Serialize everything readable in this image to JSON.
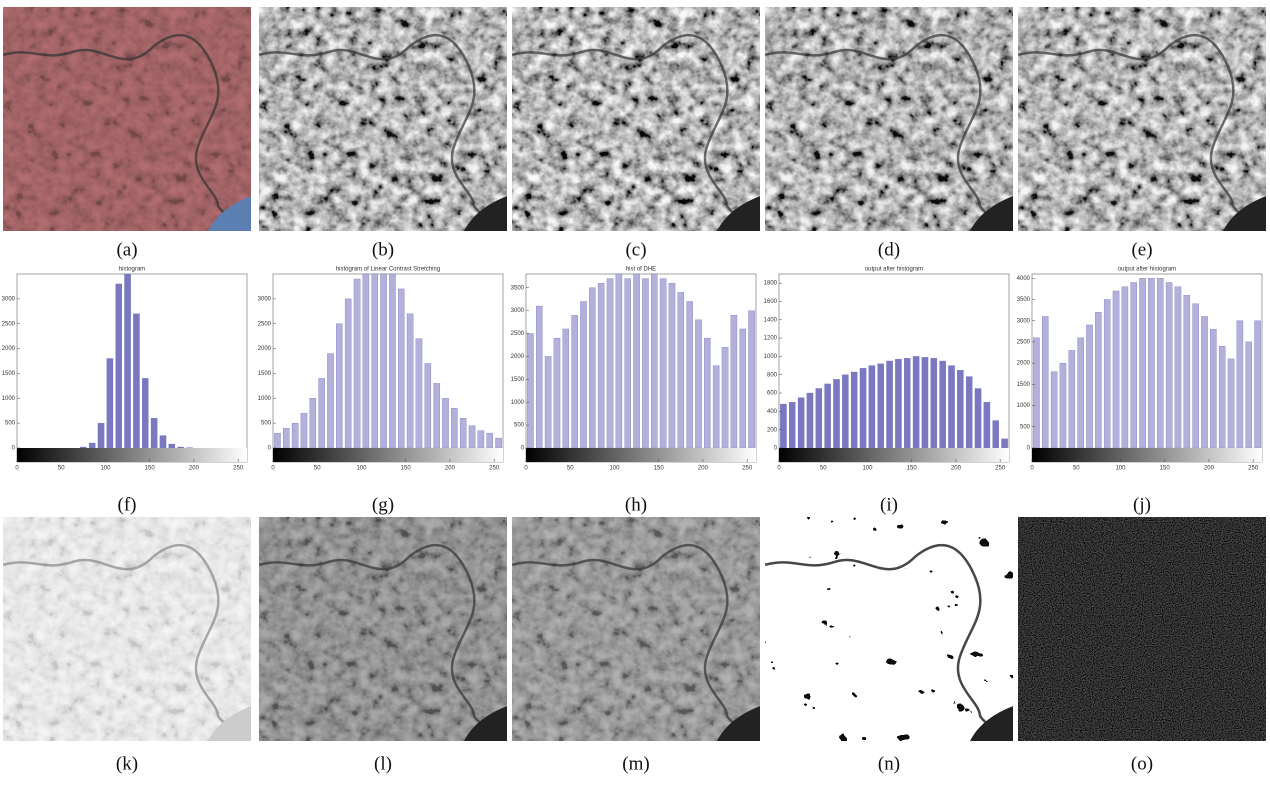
{
  "panels": [
    "(a)",
    "(b)",
    "(c)",
    "(d)",
    "(e)",
    "(f)",
    "(g)",
    "(h)",
    "(i)",
    "(j)",
    "(k)",
    "(l)",
    "(m)",
    "(n)",
    "(o)"
  ],
  "chart_data": [
    {
      "type": "bar",
      "title": "histogram",
      "color": "#7a78c0",
      "x": [
        5,
        15,
        25,
        35,
        45,
        55,
        65,
        75,
        85,
        95,
        105,
        115,
        125,
        135,
        145,
        155,
        165,
        175,
        185,
        195,
        205,
        215,
        225,
        235,
        245,
        255
      ],
      "values": [
        0,
        0,
        0,
        0,
        0,
        0,
        0,
        20,
        100,
        500,
        1800,
        3300,
        3500,
        2700,
        1400,
        600,
        250,
        80,
        20,
        5,
        0,
        0,
        0,
        0,
        0,
        0
      ],
      "xlim": [
        0,
        260
      ],
      "xticks": [
        0,
        50,
        100,
        150,
        200,
        250
      ],
      "ylim": [
        0,
        3500
      ],
      "yticks": [
        0,
        500,
        1000,
        1500,
        2000,
        2500,
        3000
      ]
    },
    {
      "type": "bar",
      "title": "histogram of Linear Contrast Stretching",
      "color": "#b3b0dc",
      "x": [
        5,
        15,
        25,
        35,
        45,
        55,
        65,
        75,
        85,
        95,
        105,
        115,
        125,
        135,
        145,
        155,
        165,
        175,
        185,
        195,
        205,
        215,
        225,
        235,
        245,
        255
      ],
      "values": [
        300,
        400,
        500,
        700,
        1000,
        1400,
        1900,
        2500,
        3000,
        3400,
        3500,
        3500,
        3500,
        3500,
        3200,
        2700,
        2200,
        1700,
        1300,
        1000,
        800,
        600,
        450,
        350,
        300,
        200
      ],
      "xlim": [
        0,
        260
      ],
      "xticks": [
        0,
        50,
        100,
        150,
        200,
        250
      ],
      "ylim": [
        0,
        3500
      ],
      "yticks": [
        0,
        500,
        1000,
        1500,
        2000,
        2500,
        3000
      ]
    },
    {
      "type": "bar",
      "title": "hist of DHE",
      "color": "#b3b0dc",
      "x": [
        5,
        15,
        25,
        35,
        45,
        55,
        65,
        75,
        85,
        95,
        105,
        115,
        125,
        135,
        145,
        155,
        165,
        175,
        185,
        195,
        205,
        215,
        225,
        235,
        245,
        255
      ],
      "values": [
        2500,
        3100,
        2000,
        2400,
        2600,
        2900,
        3200,
        3500,
        3600,
        3700,
        3800,
        3700,
        3800,
        3700,
        3800,
        3700,
        3600,
        3400,
        3200,
        2800,
        2400,
        1800,
        2200,
        2900,
        2600,
        3000
      ],
      "xlim": [
        0,
        260
      ],
      "xticks": [
        0,
        50,
        100,
        150,
        200,
        250
      ],
      "ylim": [
        0,
        3800
      ],
      "yticks": [
        0,
        500,
        1000,
        1500,
        2000,
        2500,
        3000,
        3500
      ]
    },
    {
      "type": "bar",
      "title": "output after histogram",
      "color": "#7a78c0",
      "x": [
        5,
        15,
        25,
        35,
        45,
        55,
        65,
        75,
        85,
        95,
        105,
        115,
        125,
        135,
        145,
        155,
        165,
        175,
        185,
        195,
        205,
        215,
        225,
        235,
        245,
        255
      ],
      "values": [
        480,
        500,
        550,
        600,
        650,
        700,
        750,
        800,
        830,
        870,
        900,
        920,
        950,
        970,
        980,
        1000,
        990,
        980,
        950,
        900,
        850,
        780,
        650,
        500,
        300,
        100
      ],
      "xlim": [
        0,
        260
      ],
      "xticks": [
        0,
        50,
        100,
        150,
        200,
        250
      ],
      "ylim": [
        0,
        1900
      ],
      "yticks": [
        0,
        200,
        400,
        600,
        800,
        1000,
        1200,
        1400,
        1600,
        1800
      ]
    },
    {
      "type": "bar",
      "title": "output after histogram",
      "color": "#b3b0dc",
      "x": [
        5,
        15,
        25,
        35,
        45,
        55,
        65,
        75,
        85,
        95,
        105,
        115,
        125,
        135,
        145,
        155,
        165,
        175,
        185,
        195,
        205,
        215,
        225,
        235,
        245,
        255
      ],
      "values": [
        2600,
        3100,
        1800,
        2000,
        2300,
        2600,
        2900,
        3200,
        3500,
        3700,
        3800,
        3900,
        4000,
        4000,
        4000,
        3900,
        3800,
        3600,
        3400,
        3100,
        2800,
        2400,
        2100,
        3000,
        2500,
        3000
      ],
      "xlim": [
        0,
        260
      ],
      "xticks": [
        0,
        50,
        100,
        150,
        200,
        250
      ],
      "ylim": [
        0,
        4100
      ],
      "yticks": [
        0,
        500,
        1000,
        1500,
        2000,
        2500,
        3000,
        3500,
        4000
      ]
    }
  ]
}
